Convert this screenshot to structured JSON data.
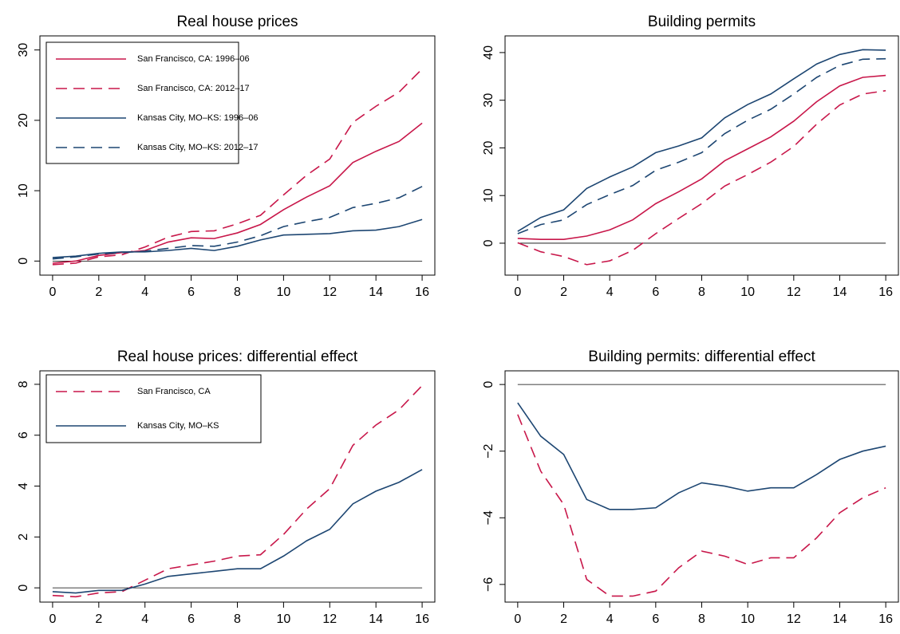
{
  "chart_data": [
    {
      "type": "line",
      "title": "Real house prices",
      "x": [
        0,
        1,
        2,
        3,
        4,
        5,
        6,
        7,
        8,
        9,
        10,
        11,
        12,
        13,
        14,
        15,
        16
      ],
      "xlim": [
        -0.55,
        16.55
      ],
      "xticks": [
        0,
        2,
        4,
        6,
        8,
        10,
        12,
        14,
        16
      ],
      "ylim": [
        -2,
        32
      ],
      "yticks": [
        0,
        10,
        20,
        30
      ],
      "hline": 0,
      "legend": "top-left",
      "series": [
        {
          "name": "San Francisco, CA: 1996–06",
          "color": "#c8174a",
          "dash": false,
          "values": [
            -0.3,
            0,
            0.8,
            1.2,
            1.5,
            2.7,
            3.3,
            3.2,
            4,
            5.2,
            7.3,
            9.1,
            10.7,
            14,
            15.6,
            17,
            19.6
          ]
        },
        {
          "name": "San Francisco, CA: 2012–17",
          "color": "#c8174a",
          "dash": true,
          "values": [
            -0.5,
            -0.3,
            0.6,
            0.9,
            2,
            3.4,
            4.2,
            4.3,
            5.3,
            6.5,
            9.4,
            12.2,
            14.5,
            19.7,
            22,
            24,
            27.3
          ]
        },
        {
          "name": "Kansas City, MO–KS: 1996–06",
          "color": "#1d4672",
          "dash": false,
          "values": [
            0.5,
            0.7,
            1.1,
            1.3,
            1.3,
            1.5,
            1.8,
            1.5,
            2.1,
            3,
            3.7,
            3.8,
            3.9,
            4.3,
            4.4,
            4.9,
            5.9
          ]
        },
        {
          "name": "Kansas City, MO–KS: 2012–17",
          "color": "#1d4672",
          "dash": true,
          "values": [
            0.3,
            0.6,
            1,
            1.2,
            1.4,
            1.8,
            2.2,
            2.1,
            2.7,
            3.6,
            4.9,
            5.6,
            6.2,
            7.6,
            8.2,
            9,
            10.6
          ]
        }
      ]
    },
    {
      "type": "line",
      "title": "Building permits",
      "x": [
        0,
        1,
        2,
        3,
        4,
        5,
        6,
        7,
        8,
        9,
        10,
        11,
        12,
        13,
        14,
        15,
        16
      ],
      "xlim": [
        -0.55,
        16.55
      ],
      "xticks": [
        0,
        2,
        4,
        6,
        8,
        10,
        12,
        14,
        16
      ],
      "ylim": [
        -6.7,
        43.5
      ],
      "yticks": [
        0,
        10,
        20,
        30,
        40
      ],
      "hline": 0,
      "series": [
        {
          "name": "San Francisco, CA: 1996–06",
          "color": "#c8174a",
          "dash": false,
          "values": [
            1,
            0.8,
            0.8,
            1.5,
            2.8,
            4.9,
            8.3,
            10.8,
            13.5,
            17.3,
            19.8,
            22.3,
            25.6,
            29.7,
            33,
            34.8,
            35.2
          ]
        },
        {
          "name": "San Francisco, CA: 2012–17",
          "color": "#c8174a",
          "dash": true,
          "values": [
            0.1,
            -1.8,
            -2.8,
            -4.5,
            -3.7,
            -1.5,
            2,
            5.2,
            8.3,
            12,
            14.4,
            17,
            20.3,
            25,
            29,
            31.3,
            32
          ]
        },
        {
          "name": "Kansas City, MO–KS: 1996–06",
          "color": "#1d4672",
          "dash": false,
          "values": [
            2.5,
            5.4,
            7,
            11.5,
            13.9,
            16,
            19,
            20.4,
            22.1,
            26.3,
            29.1,
            31.3,
            34.5,
            37.6,
            39.6,
            40.6,
            40.5
          ]
        },
        {
          "name": "Kansas City, MO–KS: 2012–17",
          "color": "#1d4672",
          "dash": true,
          "values": [
            2,
            3.9,
            4.9,
            8.1,
            10.2,
            12.1,
            15.3,
            17,
            19,
            23,
            25.8,
            28.1,
            31.3,
            34.8,
            37.3,
            38.6,
            38.7
          ]
        }
      ]
    },
    {
      "type": "line",
      "title": "Real house prices: differential effect",
      "x": [
        0,
        1,
        2,
        3,
        4,
        5,
        6,
        7,
        8,
        9,
        10,
        11,
        12,
        13,
        14,
        15,
        16
      ],
      "xlim": [
        -0.55,
        16.55
      ],
      "xticks": [
        0,
        2,
        4,
        6,
        8,
        10,
        12,
        14,
        16
      ],
      "ylim": [
        -0.56,
        8.53
      ],
      "yticks": [
        0,
        2,
        4,
        6,
        8
      ],
      "hline": 0,
      "legend": "top-left",
      "series": [
        {
          "name": "San Francisco, CA",
          "color": "#c8174a",
          "dash": true,
          "values": [
            -0.3,
            -0.35,
            -0.2,
            -0.15,
            0.3,
            0.75,
            0.9,
            1.05,
            1.25,
            1.3,
            2.1,
            3.1,
            3.9,
            5.6,
            6.4,
            7,
            7.95
          ]
        },
        {
          "name": "Kansas City, MO–KS",
          "color": "#1d4672",
          "dash": false,
          "values": [
            -0.15,
            -0.2,
            -0.1,
            -0.1,
            0.15,
            0.45,
            0.55,
            0.65,
            0.75,
            0.75,
            1.25,
            1.85,
            2.3,
            3.3,
            3.8,
            4.15,
            4.65
          ]
        }
      ]
    },
    {
      "type": "line",
      "title": "Building permits: differential effect",
      "x": [
        0,
        1,
        2,
        3,
        4,
        5,
        6,
        7,
        8,
        9,
        10,
        11,
        12,
        13,
        14,
        15,
        16
      ],
      "xlim": [
        -0.55,
        16.55
      ],
      "xticks": [
        0,
        2,
        4,
        6,
        8,
        10,
        12,
        14,
        16
      ],
      "ylim": [
        -6.53,
        0.41
      ],
      "yticks": [
        {
          "value": -6,
          "label": "−6"
        },
        {
          "value": -4,
          "label": "−4"
        },
        {
          "value": -2,
          "label": "−2"
        },
        0
      ],
      "hline": 0,
      "series": [
        {
          "name": "San Francisco, CA",
          "color": "#c8174a",
          "dash": true,
          "values": [
            -0.9,
            -2.6,
            -3.6,
            -5.85,
            -6.35,
            -6.35,
            -6.2,
            -5.5,
            -5,
            -5.15,
            -5.4,
            -5.2,
            -5.2,
            -4.6,
            -3.85,
            -3.4,
            -3.1
          ]
        },
        {
          "name": "Kansas City, MO–KS",
          "color": "#1d4672",
          "dash": false,
          "values": [
            -0.55,
            -1.55,
            -2.1,
            -3.45,
            -3.75,
            -3.75,
            -3.7,
            -3.25,
            -2.95,
            -3.05,
            -3.2,
            -3.1,
            -3.1,
            -2.7,
            -2.25,
            -2,
            -1.85
          ]
        }
      ]
    }
  ]
}
